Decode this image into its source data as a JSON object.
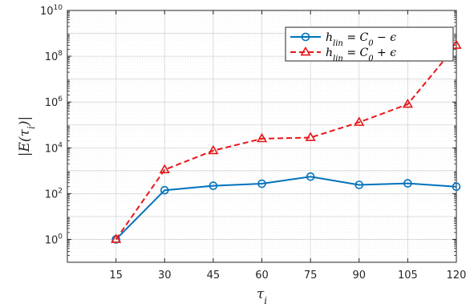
{
  "chart_data": {
    "type": "line",
    "x": [
      15,
      30,
      45,
      60,
      75,
      90,
      105,
      120
    ],
    "xlim": [
      0,
      120
    ],
    "ylim": [
      0.1,
      10000000000
    ],
    "yscale": "log",
    "grid": true,
    "legend_position": "top-right",
    "xlabel": "τ",
    "xlabel_sub": "i",
    "ylabel": "|E(τ",
    "ylabel_sub": "i",
    "ylabel_tail": ")|",
    "xticks": [
      15,
      30,
      45,
      60,
      75,
      90,
      105,
      120
    ],
    "yticks": [
      {
        "value": 1,
        "base": "10",
        "exp": "0"
      },
      {
        "value": 100,
        "base": "10",
        "exp": "2"
      },
      {
        "value": 10000,
        "base": "10",
        "exp": "4"
      },
      {
        "value": 1000000,
        "base": "10",
        "exp": "6"
      },
      {
        "value": 100000000,
        "base": "10",
        "exp": "8"
      },
      {
        "value": 10000000000,
        "base": "10",
        "exp": "10"
      }
    ],
    "series": [
      {
        "name": "h_lin = C_0 − ε",
        "label_main": "h",
        "label_sub": "lin",
        "label_mid": " = C",
        "label_sub2": "0",
        "label_tail": " − ϵ",
        "color": "#0072BD",
        "line_style": "solid",
        "marker": "circle",
        "values": [
          1,
          140,
          220,
          270,
          550,
          240,
          280,
          200
        ]
      },
      {
        "name": "h_lin = C_0 + ε",
        "label_main": "h",
        "label_sub": "lin",
        "label_mid": " = C",
        "label_sub2": "0",
        "label_tail": " + ϵ",
        "color": "#E8171B",
        "line_style": "dashed",
        "marker": "triangle",
        "values": [
          1,
          1100,
          7500,
          25000,
          28000,
          130000,
          800000,
          300000000
        ]
      }
    ]
  }
}
